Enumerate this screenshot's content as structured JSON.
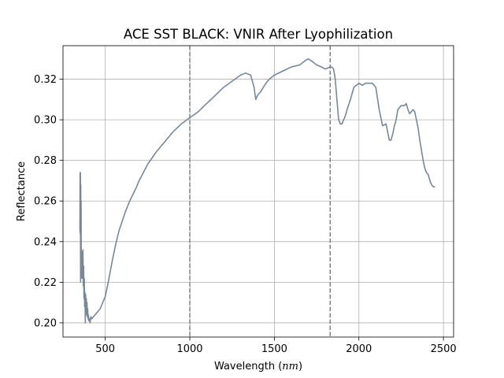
{
  "chart_data": {
    "type": "line",
    "title": "ACE SST BLACK: VNIR After Lyophilization",
    "xlabel_main": "Wavelength (",
    "xlabel_unit": "nm",
    "xlabel_close": ")",
    "ylabel": "Reflectance",
    "xlim": [
      250,
      2560
    ],
    "ylim": [
      0.193,
      0.3365
    ],
    "xticks": [
      500,
      1000,
      1500,
      2000,
      2500
    ],
    "xtick_labels": [
      "500",
      "1000",
      "1500",
      "2000",
      "2500"
    ],
    "yticks": [
      0.2,
      0.22,
      0.24,
      0.26,
      0.28,
      0.3,
      0.32
    ],
    "ytick_labels": [
      "0.20",
      "0.22",
      "0.24",
      "0.26",
      "0.28",
      "0.30",
      "0.32"
    ],
    "grid": true,
    "line_color": "#778899",
    "vlines": [
      {
        "x": 1000,
        "style": "dashed",
        "color": "#808080"
      },
      {
        "x": 1830,
        "style": "dashed",
        "color": "#808080"
      }
    ],
    "series": [
      {
        "x": [
          350,
          351,
          352,
          353,
          354,
          355,
          356,
          357,
          358,
          360,
          362,
          364,
          366,
          368,
          370,
          372,
          374,
          376,
          378,
          380,
          382,
          384,
          386,
          388,
          390,
          392,
          394,
          396,
          398,
          400,
          403,
          406,
          410,
          415,
          420,
          430,
          440,
          450,
          460,
          470,
          480,
          490,
          500,
          520,
          540,
          560,
          580,
          600,
          620,
          650,
          680,
          700,
          750,
          800,
          850,
          900,
          950,
          1000,
          1050,
          1100,
          1150,
          1200,
          1250,
          1300,
          1330,
          1360,
          1380,
          1390,
          1400,
          1420,
          1450,
          1470,
          1500,
          1550,
          1600,
          1650,
          1680,
          1700,
          1720,
          1750,
          1780,
          1800,
          1830,
          1840,
          1850,
          1860,
          1870,
          1880,
          1890,
          1900,
          1910,
          1920,
          1930,
          1950,
          1970,
          2000,
          2020,
          2040,
          2060,
          2080,
          2100,
          2120,
          2140,
          2160,
          2170,
          2180,
          2190,
          2200,
          2210,
          2220,
          2230,
          2250,
          2270,
          2280,
          2290,
          2300,
          2310,
          2320,
          2330,
          2340,
          2350,
          2360,
          2370,
          2380,
          2390,
          2400,
          2410,
          2420,
          2430,
          2440,
          2450
        ],
        "y": [
          0.245,
          0.274,
          0.244,
          0.274,
          0.22,
          0.268,
          0.222,
          0.26,
          0.225,
          0.23,
          0.222,
          0.235,
          0.222,
          0.236,
          0.218,
          0.228,
          0.212,
          0.222,
          0.208,
          0.215,
          0.2,
          0.214,
          0.206,
          0.212,
          0.204,
          0.21,
          0.203,
          0.207,
          0.202,
          0.204,
          0.201,
          0.202,
          0.2,
          0.203,
          0.202,
          0.203,
          0.204,
          0.205,
          0.206,
          0.207,
          0.209,
          0.211,
          0.213,
          0.221,
          0.23,
          0.238,
          0.245,
          0.25,
          0.255,
          0.261,
          0.266,
          0.27,
          0.278,
          0.284,
          0.289,
          0.294,
          0.298,
          0.301,
          0.304,
          0.308,
          0.312,
          0.316,
          0.319,
          0.322,
          0.323,
          0.322,
          0.316,
          0.31,
          0.312,
          0.314,
          0.318,
          0.32,
          0.322,
          0.324,
          0.326,
          0.327,
          0.329,
          0.33,
          0.329,
          0.327,
          0.326,
          0.325,
          0.326,
          0.326,
          0.325,
          0.32,
          0.31,
          0.3,
          0.298,
          0.298,
          0.3,
          0.302,
          0.305,
          0.31,
          0.316,
          0.318,
          0.317,
          0.318,
          0.318,
          0.318,
          0.316,
          0.305,
          0.297,
          0.298,
          0.294,
          0.29,
          0.29,
          0.293,
          0.297,
          0.3,
          0.305,
          0.307,
          0.307,
          0.308,
          0.305,
          0.303,
          0.304,
          0.305,
          0.304,
          0.3,
          0.296,
          0.29,
          0.285,
          0.28,
          0.276,
          0.274,
          0.273,
          0.27,
          0.268,
          0.267,
          0.267
        ]
      }
    ]
  }
}
